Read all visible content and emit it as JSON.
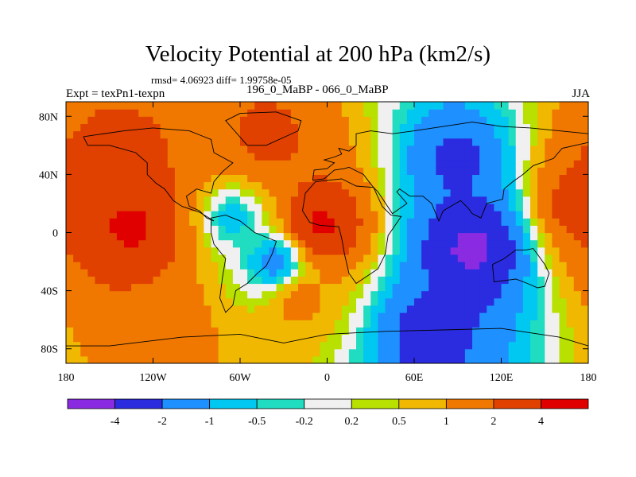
{
  "title": "Velocity Potential at 200 hPa (km2/s)",
  "stats_text": "rmsd= 4.06923  diff= 1.99758e-05",
  "experiment_text": "Expt = texPn1-texpn",
  "comparison_text": "196_0_MaBP - 066_0_MaBP",
  "season": "JJA",
  "chart_data": {
    "type": "heatmap",
    "title": "Velocity Potential at 200 hPa (km2/s)",
    "subtitle": "196_0_MaBP - 066_0_MaBP",
    "x_ticks": [
      {
        "value": -180,
        "label": "180"
      },
      {
        "value": -120,
        "label": "120W"
      },
      {
        "value": -60,
        "label": "60W"
      },
      {
        "value": 0,
        "label": "0"
      },
      {
        "value": 60,
        "label": "60E"
      },
      {
        "value": 120,
        "label": "120E"
      },
      {
        "value": 180,
        "label": "180"
      }
    ],
    "y_ticks": [
      {
        "value": 80,
        "label": "80N"
      },
      {
        "value": 40,
        "label": "40N"
      },
      {
        "value": 0,
        "label": "0"
      },
      {
        "value": -40,
        "label": "40S"
      },
      {
        "value": -80,
        "label": "80S"
      }
    ],
    "xlim": [
      -180,
      180
    ],
    "ylim": [
      -90,
      90
    ],
    "levels": [
      "-4",
      "-2",
      "-1",
      "-0.5",
      "-0.2",
      "0.2",
      "0.5",
      "1",
      "2",
      "4"
    ],
    "colors": [
      "#8a2be2",
      "#2b2be0",
      "#1e90ff",
      "#00c8f0",
      "#20dcc0",
      "#f0f0f0",
      "#b8e000",
      "#f0b800",
      "#f07800",
      "#e04000",
      "#e00000"
    ],
    "field_centers": [
      {
        "lon": -135,
        "lat": 5,
        "value": 5
      },
      {
        "lon": -150,
        "lat": 50,
        "value": 2.5
      },
      {
        "lon": -40,
        "lat": 65,
        "value": 2.5
      },
      {
        "lon": -5,
        "lat": 5,
        "value": 5
      },
      {
        "lon": -65,
        "lat": 10,
        "value": -1
      },
      {
        "lon": -35,
        "lat": -20,
        "value": -2
      },
      {
        "lon": -20,
        "lat": -45,
        "value": 1.5
      },
      {
        "lon": 100,
        "lat": -10,
        "value": -5
      },
      {
        "lon": 90,
        "lat": 50,
        "value": -2.5
      },
      {
        "lon": 70,
        "lat": -70,
        "value": -3
      },
      {
        "lon": 175,
        "lat": 20,
        "value": 3
      },
      {
        "lon": -120,
        "lat": -70,
        "value": 1.5
      }
    ]
  }
}
